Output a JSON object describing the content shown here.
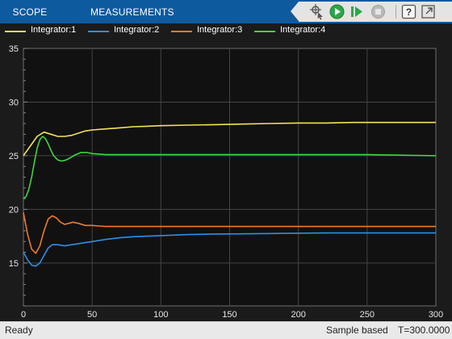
{
  "toolstrip": {
    "tabs": [
      {
        "label": "SCOPE"
      },
      {
        "label": "MEASUREMENTS"
      }
    ],
    "tools": [
      "data-cursor-icon",
      "run-icon",
      "step-forward-icon",
      "stop-icon",
      "help-icon",
      "expand-icon"
    ]
  },
  "legend": [
    {
      "label": "Integrator:1",
      "color": "#f2e35a"
    },
    {
      "label": "Integrator:2",
      "color": "#2e8fe6"
    },
    {
      "label": "Integrator:3",
      "color": "#f07a2a"
    },
    {
      "label": "Integrator:4",
      "color": "#3fd63f"
    }
  ],
  "chart_data": {
    "type": "line",
    "xlim": [
      0,
      300
    ],
    "ylim": [
      11,
      35
    ],
    "x_ticks": [
      0,
      50,
      100,
      150,
      200,
      250,
      300
    ],
    "y_ticks": [
      15,
      20,
      25,
      30,
      35
    ],
    "grid": true,
    "legend_position": "top",
    "series": [
      {
        "name": "Integrator:1",
        "color": "#f2e35a",
        "x": [
          0,
          5,
          10,
          15,
          20,
          25,
          30,
          35,
          40,
          45,
          50,
          60,
          70,
          80,
          90,
          100,
          120,
          140,
          160,
          180,
          200,
          220,
          240,
          260,
          280,
          300
        ],
        "y": [
          25.0,
          25.9,
          26.8,
          27.2,
          27.0,
          26.8,
          26.8,
          26.9,
          27.1,
          27.3,
          27.4,
          27.5,
          27.6,
          27.7,
          27.75,
          27.8,
          27.85,
          27.9,
          27.95,
          28.0,
          28.05,
          28.05,
          28.1,
          28.1,
          28.1,
          28.1
        ]
      },
      {
        "name": "Integrator:2",
        "color": "#2e8fe6",
        "x": [
          0,
          3,
          6,
          9,
          12,
          15,
          18,
          21,
          25,
          30,
          35,
          40,
          45,
          50,
          60,
          70,
          80,
          90,
          100,
          120,
          140,
          160,
          180,
          200,
          220,
          240,
          260,
          280,
          300
        ],
        "y": [
          16.0,
          15.3,
          14.8,
          14.7,
          15.0,
          15.7,
          16.4,
          16.7,
          16.7,
          16.6,
          16.7,
          16.8,
          16.9,
          17.0,
          17.2,
          17.35,
          17.45,
          17.5,
          17.55,
          17.65,
          17.7,
          17.72,
          17.75,
          17.78,
          17.8,
          17.8,
          17.8,
          17.8,
          17.8
        ]
      },
      {
        "name": "Integrator:3",
        "color": "#f07a2a",
        "x": [
          0,
          3,
          6,
          9,
          12,
          15,
          18,
          21,
          24,
          27,
          30,
          33,
          36,
          40,
          45,
          50,
          55,
          60,
          80,
          100,
          150,
          200,
          250,
          300
        ],
        "y": [
          19.7,
          17.7,
          16.3,
          15.9,
          16.6,
          18.0,
          19.1,
          19.4,
          19.2,
          18.8,
          18.6,
          18.7,
          18.8,
          18.7,
          18.5,
          18.5,
          18.45,
          18.4,
          18.4,
          18.4,
          18.4,
          18.4,
          18.4,
          18.4
        ]
      },
      {
        "name": "Integrator:4",
        "color": "#3fd63f",
        "x": [
          0,
          2,
          4,
          6,
          8,
          10,
          12,
          14,
          16,
          18,
          20,
          22,
          25,
          28,
          31,
          34,
          38,
          42,
          46,
          50,
          55,
          60,
          80,
          100,
          150,
          200,
          250,
          300
        ],
        "y": [
          21.0,
          21.2,
          21.9,
          23.0,
          24.4,
          25.7,
          26.5,
          26.8,
          26.6,
          26.1,
          25.5,
          25.0,
          24.6,
          24.5,
          24.6,
          24.8,
          25.1,
          25.3,
          25.3,
          25.2,
          25.15,
          25.1,
          25.1,
          25.1,
          25.1,
          25.1,
          25.1,
          25.0
        ]
      }
    ]
  },
  "status": {
    "ready": "Ready",
    "mode": "Sample based",
    "time": "T=300.0000"
  }
}
